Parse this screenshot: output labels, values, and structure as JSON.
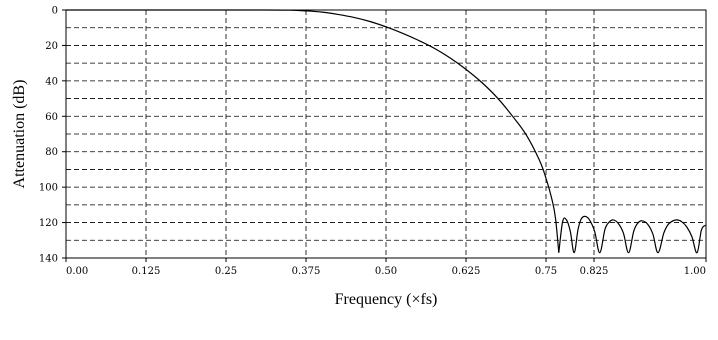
{
  "chart_data": {
    "type": "line",
    "title": "",
    "xlabel": "Frequency  (×fs)",
    "ylabel": "Attenuation (dB)",
    "xlim": [
      0,
      1.0
    ],
    "ylim": [
      0,
      140
    ],
    "y_inverted": true,
    "grid": true,
    "x_ticks": [
      0,
      0.125,
      0.25,
      0.375,
      0.5,
      0.625,
      0.75,
      0.825,
      1.0
    ],
    "x_tick_labels": [
      "0.00",
      "0.125",
      "0.25",
      "0.375",
      "0.50",
      "0.625",
      "0.75",
      "0.825",
      "1.00"
    ],
    "y_ticks": [
      0,
      20,
      40,
      60,
      80,
      100,
      120,
      140
    ],
    "y_tick_labels": [
      "0",
      "20",
      "40",
      "60",
      "80",
      "100",
      "120",
      "140"
    ],
    "series": [
      {
        "color": "#000000",
        "x": [
          0.0,
          0.1,
          0.2,
          0.3,
          0.35,
          0.375,
          0.4,
          0.425,
          0.45,
          0.475,
          0.5,
          0.525,
          0.55,
          0.575,
          0.6,
          0.625,
          0.65,
          0.675,
          0.7,
          0.72,
          0.74,
          0.75,
          0.76,
          0.765,
          0.77
        ],
        "y": [
          0.0,
          0.0,
          0.0,
          0.0,
          0.1,
          0.5,
          1.2,
          2.5,
          4.2,
          6.5,
          9.5,
          13.0,
          17.0,
          21.5,
          27.0,
          33.5,
          41.0,
          50.0,
          61.0,
          71.0,
          85.0,
          95.0,
          108.0,
          118.0,
          137.0
        ]
      },
      {
        "color": "#000000",
        "x": [
          0.77,
          0.776,
          0.782,
          0.788,
          0.794,
          0.8,
          0.805,
          0.811,
          0.818,
          0.826,
          0.834,
          0.842,
          0.848,
          0.855,
          0.863,
          0.871,
          0.879,
          0.887,
          0.893,
          0.9,
          0.909,
          0.917,
          0.925,
          0.934,
          0.94,
          0.946,
          0.954,
          0.962,
          0.97,
          0.978,
          0.986,
          0.993,
          1.0
        ],
        "y": [
          137.0,
          119.5,
          118.5,
          125.0,
          137.0,
          124.0,
          118.0,
          116.5,
          118.5,
          125.0,
          137.0,
          124.0,
          120.0,
          118.5,
          120.5,
          126.0,
          137.0,
          125.0,
          120.5,
          119.0,
          121.0,
          126.5,
          137.0,
          126.0,
          121.5,
          119.5,
          118.5,
          119.5,
          122.5,
          128.0,
          137.0,
          124.0,
          121.5
        ]
      }
    ]
  }
}
